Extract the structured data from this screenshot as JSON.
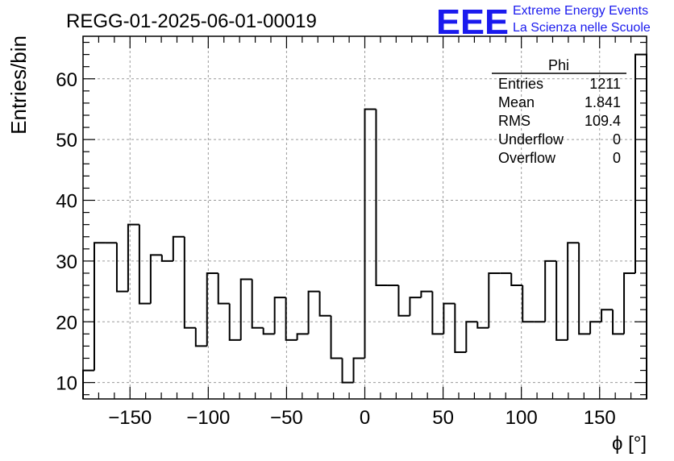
{
  "title": "REGG-01-2025-06-01-00019",
  "logo": {
    "mark": "EEE",
    "line1": "Extreme Energy Events",
    "line2": "La Scienza nelle Scuole",
    "color": "#1a1aee"
  },
  "stats": {
    "name": "Phi",
    "rows": [
      {
        "label": "Entries",
        "value": "1211"
      },
      {
        "label": "Mean",
        "value": "1.841"
      },
      {
        "label": "RMS",
        "value": "109.4"
      },
      {
        "label": "Underflow",
        "value": "0"
      },
      {
        "label": "Overflow",
        "value": "0"
      }
    ]
  },
  "chart_data": {
    "type": "bar",
    "style": "step-histogram",
    "title": "REGG-01-2025-06-01-00019",
    "xlabel": "ϕ [°]",
    "ylabel": "Entries/bin",
    "xlim": [
      -180,
      180
    ],
    "ylim": [
      7.3,
      67.0
    ],
    "bin_width": 7.2,
    "x_ticks": [
      -150,
      -100,
      -50,
      0,
      50,
      100,
      150
    ],
    "x_tick_labels": [
      "−150",
      "−100",
      "−50",
      "0",
      "50",
      "100",
      "150"
    ],
    "y_ticks": [
      10,
      20,
      30,
      40,
      50,
      60
    ],
    "y_tick_labels": [
      "10",
      "20",
      "30",
      "40",
      "50",
      "60"
    ],
    "grid": true,
    "values": [
      12,
      33,
      33,
      25,
      36,
      23,
      31,
      30,
      34,
      19,
      16,
      28,
      23,
      17,
      27,
      19,
      18,
      24,
      17,
      18,
      25,
      21,
      14,
      10,
      14,
      55,
      26,
      26,
      21,
      24,
      25,
      18,
      23,
      15,
      20,
      19,
      28,
      28,
      26,
      20,
      20,
      30,
      17,
      33,
      18,
      20,
      22,
      18,
      28,
      64
    ]
  }
}
